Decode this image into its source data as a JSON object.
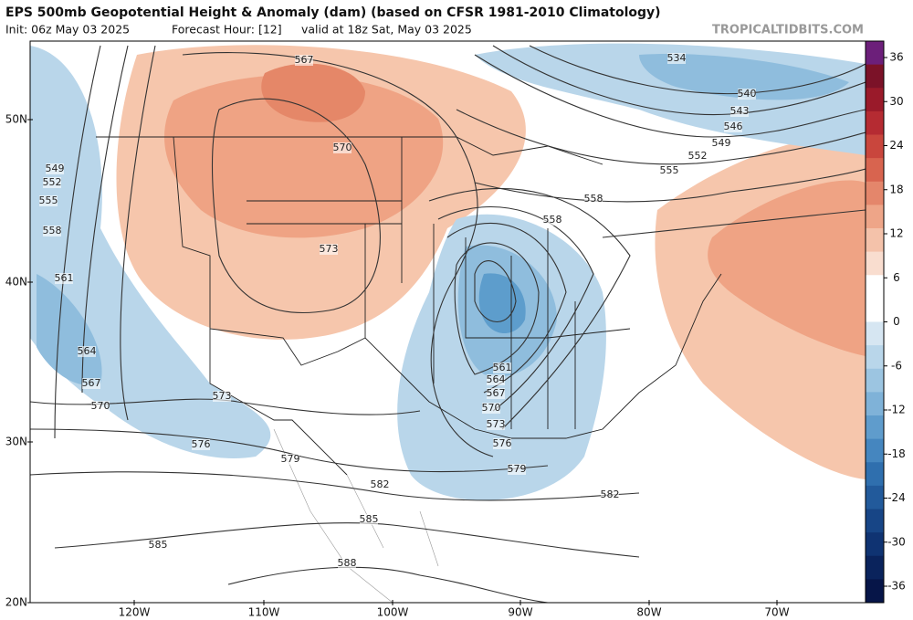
{
  "header": {
    "title": "EPS 500mb Geopotential Height & Anomaly (dam) (based on CFSR 1981-2010 Climatology)",
    "init": "Init: 06z May 03 2025",
    "forecast_hour": "Forecast Hour: [12]",
    "valid": "valid at 18z Sat, May 03 2025",
    "source": "TROPICALTIDBITS.COM"
  },
  "map": {
    "lat_labels": [
      "50N",
      "40N",
      "30N",
      "20N"
    ],
    "lon_labels": [
      "120W",
      "110W",
      "100W",
      "90W",
      "80W",
      "70W"
    ],
    "contour_labels": [
      567,
      570,
      573,
      573,
      576,
      579,
      582,
      582,
      585,
      585,
      588,
      549,
      552,
      555,
      558,
      561,
      564,
      567,
      570,
      534,
      540,
      543,
      546,
      549,
      552,
      555,
      558,
      558,
      561,
      564,
      567,
      570,
      573,
      576,
      579
    ]
  },
  "colorbar": {
    "ticks": [
      36,
      30,
      24,
      18,
      12,
      6,
      0,
      -6,
      -12,
      -18,
      -24,
      -30,
      -36
    ]
  }
}
